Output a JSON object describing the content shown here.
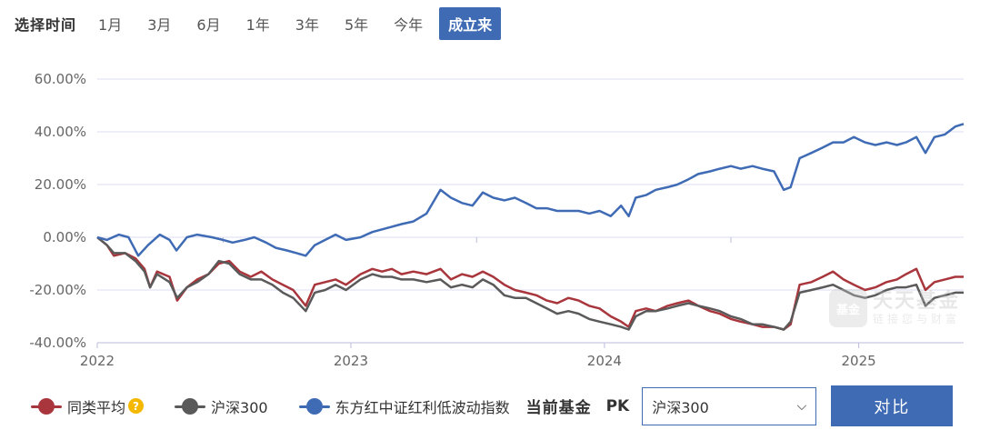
{
  "range": {
    "label": "选择时间",
    "tabs": [
      "1月",
      "3月",
      "6月",
      "1年",
      "3年",
      "5年",
      "今年",
      "成立来"
    ],
    "active_index": 7
  },
  "watermark": {
    "badge": "基金",
    "title": "天天基金",
    "subtitle": "链接您与财富"
  },
  "legend": [
    {
      "name": "同类平均",
      "color": "#a8363c",
      "help": "?"
    },
    {
      "name": "沪深300",
      "color": "#5a5a5a"
    },
    {
      "name": "东方红中证红利低波动指数",
      "color": "#3f6bb5"
    }
  ],
  "controls": {
    "current_fund": "当前基金",
    "pk": "PK",
    "select_value": "沪深300",
    "compare_label": "对比"
  },
  "colors": {
    "accent": "#3f6bb5",
    "grid": "#dcdcf0"
  },
  "chart_data": {
    "type": "line",
    "x_ticks": [
      "2022",
      "2023",
      "2024",
      "2025"
    ],
    "y_ticks": [
      "60.00%",
      "40.00%",
      "20.00%",
      "0.00%",
      "-20.00%",
      "-40.00%"
    ],
    "ylim": [
      -40,
      60
    ],
    "xlim": [
      "2022-01-01",
      "2025-06-01"
    ],
    "grid": true,
    "series": [
      {
        "name": "东方红中证红利低波动指数",
        "color": "#3f6bb5",
        "points": [
          [
            "2022-01-01",
            0
          ],
          [
            "2022-01-15",
            -1
          ],
          [
            "2022-02-01",
            1
          ],
          [
            "2022-02-15",
            0
          ],
          [
            "2022-03-01",
            -7
          ],
          [
            "2022-03-15",
            -3
          ],
          [
            "2022-04-01",
            1
          ],
          [
            "2022-04-15",
            -1
          ],
          [
            "2022-04-25",
            -5
          ],
          [
            "2022-05-10",
            0
          ],
          [
            "2022-05-25",
            1
          ],
          [
            "2022-06-15",
            0
          ],
          [
            "2022-07-01",
            -1
          ],
          [
            "2022-07-15",
            -2
          ],
          [
            "2022-08-01",
            -1
          ],
          [
            "2022-08-15",
            0
          ],
          [
            "2022-09-01",
            -2
          ],
          [
            "2022-09-15",
            -4
          ],
          [
            "2022-10-01",
            -5
          ],
          [
            "2022-10-15",
            -6
          ],
          [
            "2022-10-28",
            -7
          ],
          [
            "2022-11-10",
            -3
          ],
          [
            "2022-11-25",
            -1
          ],
          [
            "2022-12-10",
            1
          ],
          [
            "2022-12-25",
            -1
          ],
          [
            "2023-01-15",
            0
          ],
          [
            "2023-02-01",
            2
          ],
          [
            "2023-02-15",
            3
          ],
          [
            "2023-03-01",
            4
          ],
          [
            "2023-03-15",
            5
          ],
          [
            "2023-04-01",
            6
          ],
          [
            "2023-04-20",
            9
          ],
          [
            "2023-05-10",
            18
          ],
          [
            "2023-05-25",
            15
          ],
          [
            "2023-06-10",
            13
          ],
          [
            "2023-06-25",
            12
          ],
          [
            "2023-07-10",
            17
          ],
          [
            "2023-07-25",
            15
          ],
          [
            "2023-08-10",
            14
          ],
          [
            "2023-08-25",
            15
          ],
          [
            "2023-09-10",
            13
          ],
          [
            "2023-09-25",
            11
          ],
          [
            "2023-10-10",
            11
          ],
          [
            "2023-10-25",
            10
          ],
          [
            "2023-11-10",
            10
          ],
          [
            "2023-11-25",
            10
          ],
          [
            "2023-12-10",
            9
          ],
          [
            "2023-12-25",
            10
          ],
          [
            "2024-01-10",
            8
          ],
          [
            "2024-01-25",
            12
          ],
          [
            "2024-02-05",
            8
          ],
          [
            "2024-02-15",
            15
          ],
          [
            "2024-03-01",
            16
          ],
          [
            "2024-03-15",
            18
          ],
          [
            "2024-04-01",
            19
          ],
          [
            "2024-04-15",
            20
          ],
          [
            "2024-05-01",
            22
          ],
          [
            "2024-05-15",
            24
          ],
          [
            "2024-06-01",
            25
          ],
          [
            "2024-06-15",
            26
          ],
          [
            "2024-07-01",
            27
          ],
          [
            "2024-07-15",
            26
          ],
          [
            "2024-08-01",
            27
          ],
          [
            "2024-08-15",
            26
          ],
          [
            "2024-09-01",
            25
          ],
          [
            "2024-09-15",
            18
          ],
          [
            "2024-09-25",
            19
          ],
          [
            "2024-10-08",
            30
          ],
          [
            "2024-10-25",
            32
          ],
          [
            "2024-11-10",
            34
          ],
          [
            "2024-11-25",
            36
          ],
          [
            "2024-12-10",
            36
          ],
          [
            "2024-12-25",
            38
          ],
          [
            "2025-01-10",
            36
          ],
          [
            "2025-01-25",
            35
          ],
          [
            "2025-02-10",
            36
          ],
          [
            "2025-02-25",
            35
          ],
          [
            "2025-03-10",
            36
          ],
          [
            "2025-03-25",
            38
          ],
          [
            "2025-04-07",
            32
          ],
          [
            "2025-04-20",
            38
          ],
          [
            "2025-05-05",
            39
          ],
          [
            "2025-05-20",
            42
          ],
          [
            "2025-06-01",
            43
          ]
        ]
      },
      {
        "name": "同类平均",
        "color": "#a8363c",
        "points": [
          [
            "2022-01-01",
            0
          ],
          [
            "2022-01-15",
            -3
          ],
          [
            "2022-01-25",
            -7
          ],
          [
            "2022-02-10",
            -6
          ],
          [
            "2022-02-25",
            -8
          ],
          [
            "2022-03-10",
            -12
          ],
          [
            "2022-03-18",
            -19
          ],
          [
            "2022-03-28",
            -13
          ],
          [
            "2022-04-15",
            -15
          ],
          [
            "2022-04-26",
            -24
          ],
          [
            "2022-05-10",
            -19
          ],
          [
            "2022-05-25",
            -16
          ],
          [
            "2022-06-10",
            -14
          ],
          [
            "2022-06-25",
            -10
          ],
          [
            "2022-07-10",
            -9
          ],
          [
            "2022-07-25",
            -13
          ],
          [
            "2022-08-10",
            -15
          ],
          [
            "2022-08-25",
            -13
          ],
          [
            "2022-09-10",
            -16
          ],
          [
            "2022-09-25",
            -18
          ],
          [
            "2022-10-10",
            -20
          ],
          [
            "2022-10-28",
            -26
          ],
          [
            "2022-11-10",
            -18
          ],
          [
            "2022-11-25",
            -17
          ],
          [
            "2022-12-10",
            -16
          ],
          [
            "2022-12-25",
            -18
          ],
          [
            "2023-01-15",
            -14
          ],
          [
            "2023-02-01",
            -12
          ],
          [
            "2023-02-15",
            -13
          ],
          [
            "2023-03-01",
            -12
          ],
          [
            "2023-03-15",
            -14
          ],
          [
            "2023-04-01",
            -13
          ],
          [
            "2023-04-20",
            -14
          ],
          [
            "2023-05-10",
            -12
          ],
          [
            "2023-05-25",
            -16
          ],
          [
            "2023-06-10",
            -14
          ],
          [
            "2023-06-25",
            -15
          ],
          [
            "2023-07-10",
            -13
          ],
          [
            "2023-07-25",
            -15
          ],
          [
            "2023-08-10",
            -18
          ],
          [
            "2023-08-25",
            -20
          ],
          [
            "2023-09-10",
            -21
          ],
          [
            "2023-09-25",
            -22
          ],
          [
            "2023-10-10",
            -24
          ],
          [
            "2023-10-25",
            -25
          ],
          [
            "2023-11-10",
            -23
          ],
          [
            "2023-11-25",
            -24
          ],
          [
            "2023-12-10",
            -26
          ],
          [
            "2023-12-25",
            -27
          ],
          [
            "2024-01-10",
            -30
          ],
          [
            "2024-01-25",
            -32
          ],
          [
            "2024-02-05",
            -34
          ],
          [
            "2024-02-15",
            -28
          ],
          [
            "2024-03-01",
            -27
          ],
          [
            "2024-03-15",
            -28
          ],
          [
            "2024-04-01",
            -26
          ],
          [
            "2024-04-15",
            -25
          ],
          [
            "2024-05-01",
            -24
          ],
          [
            "2024-05-15",
            -26
          ],
          [
            "2024-06-01",
            -28
          ],
          [
            "2024-06-15",
            -29
          ],
          [
            "2024-07-01",
            -31
          ],
          [
            "2024-07-15",
            -32
          ],
          [
            "2024-08-01",
            -33
          ],
          [
            "2024-08-15",
            -34
          ],
          [
            "2024-09-01",
            -34
          ],
          [
            "2024-09-15",
            -35
          ],
          [
            "2024-09-25",
            -33
          ],
          [
            "2024-10-08",
            -18
          ],
          [
            "2024-10-25",
            -17
          ],
          [
            "2024-11-10",
            -15
          ],
          [
            "2024-11-25",
            -13
          ],
          [
            "2024-12-10",
            -16
          ],
          [
            "2024-12-25",
            -18
          ],
          [
            "2025-01-10",
            -20
          ],
          [
            "2025-01-25",
            -19
          ],
          [
            "2025-02-10",
            -17
          ],
          [
            "2025-02-25",
            -16
          ],
          [
            "2025-03-10",
            -14
          ],
          [
            "2025-03-25",
            -12
          ],
          [
            "2025-04-07",
            -20
          ],
          [
            "2025-04-20",
            -17
          ],
          [
            "2025-05-05",
            -16
          ],
          [
            "2025-05-20",
            -15
          ],
          [
            "2025-06-01",
            -15
          ]
        ]
      },
      {
        "name": "沪深300",
        "color": "#5a5a5a",
        "points": [
          [
            "2022-01-01",
            0
          ],
          [
            "2022-01-15",
            -3
          ],
          [
            "2022-01-25",
            -6
          ],
          [
            "2022-02-10",
            -6
          ],
          [
            "2022-02-25",
            -9
          ],
          [
            "2022-03-10",
            -13
          ],
          [
            "2022-03-18",
            -19
          ],
          [
            "2022-03-28",
            -14
          ],
          [
            "2022-04-15",
            -17
          ],
          [
            "2022-04-26",
            -23
          ],
          [
            "2022-05-10",
            -19
          ],
          [
            "2022-05-25",
            -17
          ],
          [
            "2022-06-10",
            -14
          ],
          [
            "2022-06-25",
            -9
          ],
          [
            "2022-07-10",
            -10
          ],
          [
            "2022-07-25",
            -14
          ],
          [
            "2022-08-10",
            -16
          ],
          [
            "2022-08-25",
            -16
          ],
          [
            "2022-09-10",
            -18
          ],
          [
            "2022-09-25",
            -21
          ],
          [
            "2022-10-10",
            -23
          ],
          [
            "2022-10-28",
            -28
          ],
          [
            "2022-11-10",
            -21
          ],
          [
            "2022-11-25",
            -20
          ],
          [
            "2022-12-10",
            -18
          ],
          [
            "2022-12-25",
            -20
          ],
          [
            "2023-01-15",
            -16
          ],
          [
            "2023-02-01",
            -14
          ],
          [
            "2023-02-15",
            -15
          ],
          [
            "2023-03-01",
            -15
          ],
          [
            "2023-03-15",
            -16
          ],
          [
            "2023-04-01",
            -16
          ],
          [
            "2023-04-20",
            -17
          ],
          [
            "2023-05-10",
            -16
          ],
          [
            "2023-05-25",
            -19
          ],
          [
            "2023-06-10",
            -18
          ],
          [
            "2023-06-25",
            -19
          ],
          [
            "2023-07-10",
            -16
          ],
          [
            "2023-07-25",
            -18
          ],
          [
            "2023-08-10",
            -22
          ],
          [
            "2023-08-25",
            -23
          ],
          [
            "2023-09-10",
            -23
          ],
          [
            "2023-09-25",
            -25
          ],
          [
            "2023-10-10",
            -27
          ],
          [
            "2023-10-25",
            -29
          ],
          [
            "2023-11-10",
            -28
          ],
          [
            "2023-11-25",
            -29
          ],
          [
            "2023-12-10",
            -31
          ],
          [
            "2023-12-25",
            -32
          ],
          [
            "2024-01-10",
            -33
          ],
          [
            "2024-01-25",
            -34
          ],
          [
            "2024-02-05",
            -35
          ],
          [
            "2024-02-15",
            -30
          ],
          [
            "2024-03-01",
            -28
          ],
          [
            "2024-03-15",
            -28
          ],
          [
            "2024-04-01",
            -27
          ],
          [
            "2024-04-15",
            -26
          ],
          [
            "2024-05-01",
            -25
          ],
          [
            "2024-05-15",
            -26
          ],
          [
            "2024-06-01",
            -27
          ],
          [
            "2024-06-15",
            -28
          ],
          [
            "2024-07-01",
            -30
          ],
          [
            "2024-07-15",
            -31
          ],
          [
            "2024-08-01",
            -33
          ],
          [
            "2024-08-15",
            -33
          ],
          [
            "2024-09-01",
            -34
          ],
          [
            "2024-09-15",
            -35
          ],
          [
            "2024-09-25",
            -32
          ],
          [
            "2024-10-08",
            -21
          ],
          [
            "2024-10-25",
            -20
          ],
          [
            "2024-11-10",
            -19
          ],
          [
            "2024-11-25",
            -18
          ],
          [
            "2024-12-10",
            -20
          ],
          [
            "2024-12-25",
            -22
          ],
          [
            "2025-01-10",
            -23
          ],
          [
            "2025-01-25",
            -22
          ],
          [
            "2025-02-10",
            -20
          ],
          [
            "2025-02-25",
            -19
          ],
          [
            "2025-03-10",
            -19
          ],
          [
            "2025-03-25",
            -18
          ],
          [
            "2025-04-07",
            -26
          ],
          [
            "2025-04-20",
            -23
          ],
          [
            "2025-05-05",
            -22
          ],
          [
            "2025-05-20",
            -21
          ],
          [
            "2025-06-01",
            -21
          ]
        ]
      }
    ]
  }
}
